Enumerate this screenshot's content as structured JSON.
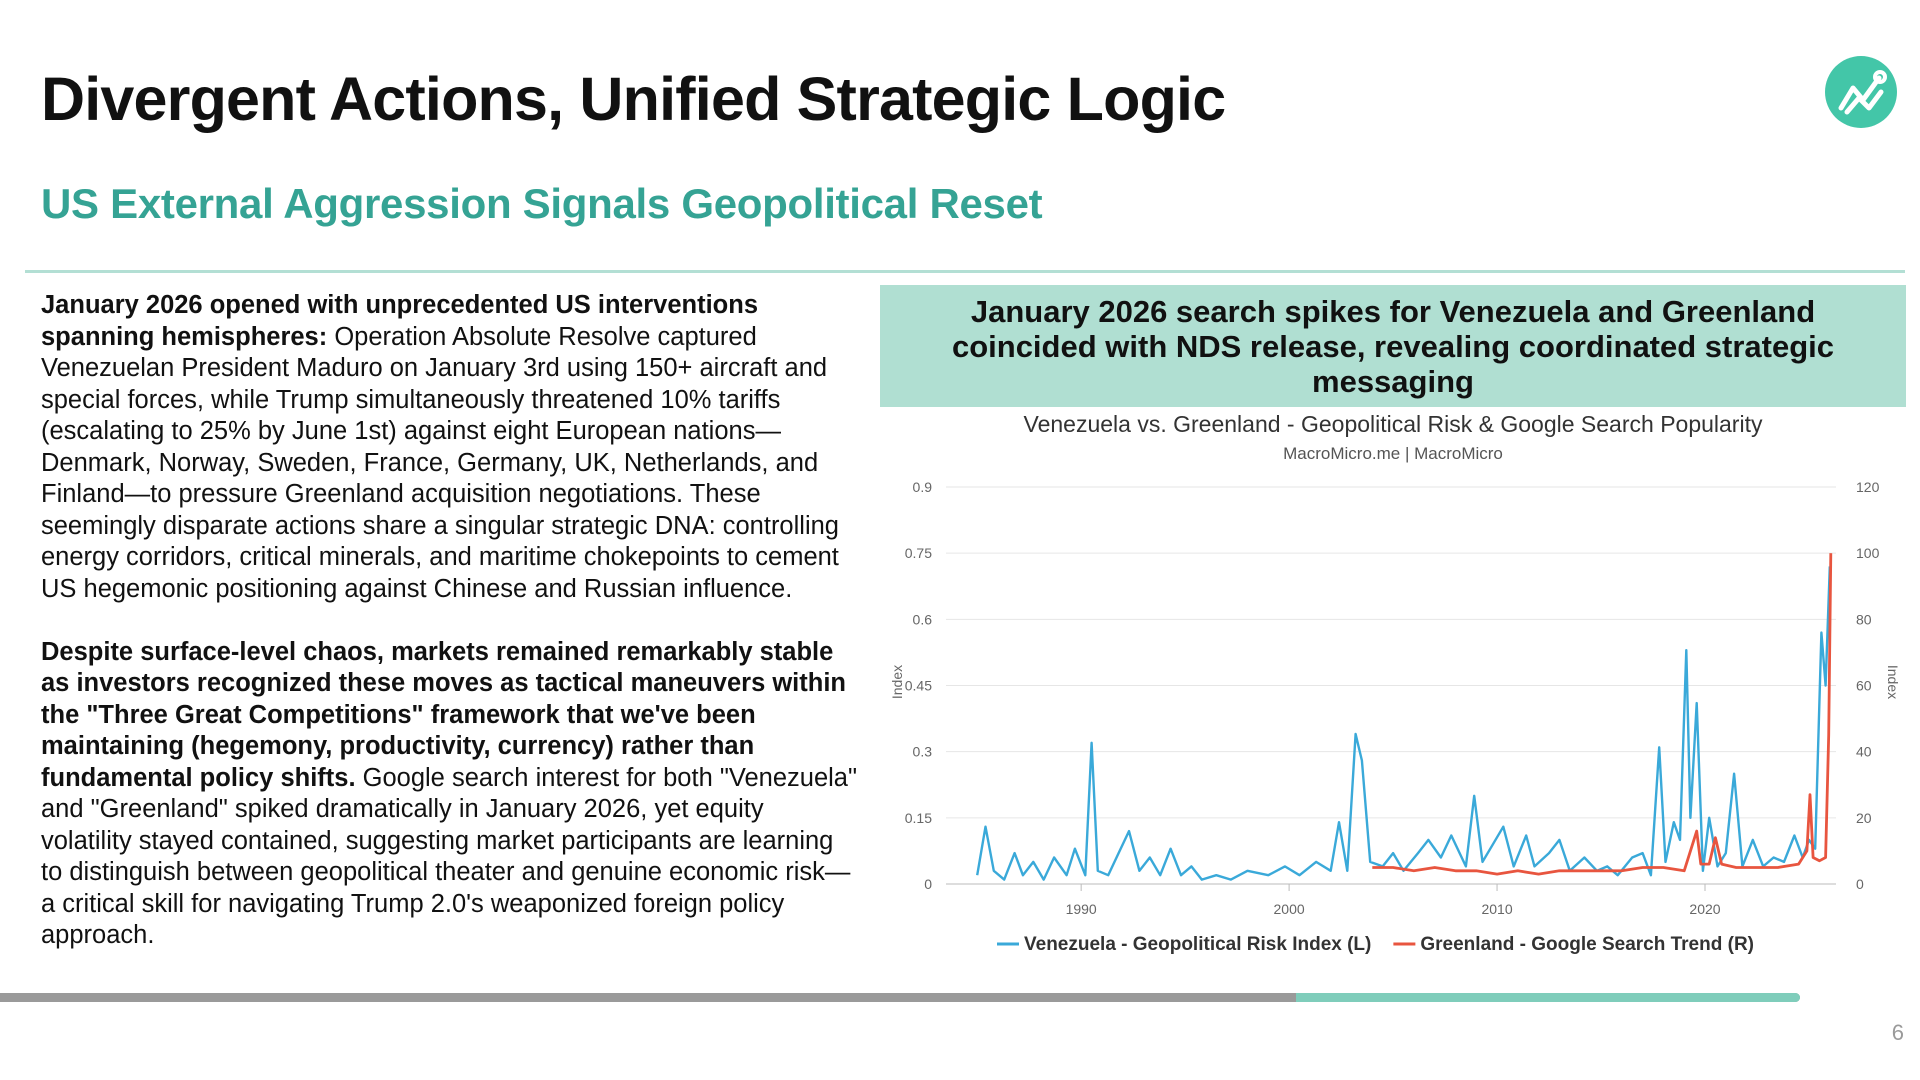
{
  "slide": {
    "title": "Divergent Actions, Unified Strategic Logic",
    "subtitle": "US External Aggression Signals Geopolitical Reset",
    "page_number": "6",
    "progress": 0.72,
    "accent_color": "#35a394",
    "logo_icon": "trend-chart-icon"
  },
  "body": {
    "p1_bold": "January 2026 opened with unprecedented US interventions spanning hemispheres:",
    "p1_text": " Operation Absolute Resolve captured Venezuelan President Maduro on January 3rd using 150+ aircraft and special forces, while Trump simultaneously threatened 10% tariffs (escalating to 25% by June 1st) against eight European nations—Denmark, Norway, Sweden, France, Germany, UK, Netherlands, and Finland—to pressure Greenland acquisition negotiations. These seemingly disparate actions share a singular strategic DNA: controlling energy corridors, critical minerals, and maritime chokepoints to cement US hegemonic positioning against Chinese and Russian influence.",
    "p2_bold": "Despite surface-level chaos, markets remained remarkably stable as investors recognized these moves as tactical maneuvers within the \"Three Great Competitions\" framework that we've been maintaining (hegemony, productivity, currency) rather than fundamental policy shifts.",
    "p2_text": " Google search interest for both \"Venezuela\" and \"Greenland\" spiked dramatically in January 2026, yet equity volatility stayed contained, suggesting market participants are learning to distinguish between geopolitical theater and genuine economic risk—a critical skill for navigating Trump 2.0's weaponized foreign policy approach."
  },
  "panel": {
    "heading": "January 2026 search spikes for Venezuela and Greenland coincided with NDS release, revealing coordinated strategic messaging"
  },
  "chart_data": {
    "type": "line",
    "title": "Venezuela vs. Greenland - Geopolitical Risk & Google Search Popularity",
    "subtitle": "MacroMicro.me | MacroMicro",
    "ylabel_left": "Index",
    "ylabel_right": "Index",
    "left_axis": {
      "ticks": [
        "0",
        "0.15",
        "0.3",
        "0.45",
        "0.6",
        "0.75",
        "0.9"
      ],
      "range": [
        0,
        0.9
      ]
    },
    "right_axis": {
      "ticks": [
        "0",
        "20",
        "40",
        "60",
        "80",
        "100",
        "120"
      ],
      "range": [
        0,
        120
      ]
    },
    "x_axis": {
      "ticks": [
        "1990",
        "2000",
        "2010",
        "2020"
      ],
      "range": [
        1983.5,
        2026.3
      ]
    },
    "grid": true,
    "legend_position": "bottom",
    "series": [
      {
        "name": "Venezuela - Geopolitical Risk Index (L)",
        "axis": "left",
        "color": "#3aa9d9",
        "points": [
          [
            1985,
            0.02
          ],
          [
            1985.4,
            0.13
          ],
          [
            1985.8,
            0.03
          ],
          [
            1986.3,
            0.01
          ],
          [
            1986.8,
            0.07
          ],
          [
            1987.2,
            0.02
          ],
          [
            1987.7,
            0.05
          ],
          [
            1988.2,
            0.01
          ],
          [
            1988.7,
            0.06
          ],
          [
            1989.3,
            0.02
          ],
          [
            1989.7,
            0.08
          ],
          [
            1990.2,
            0.02
          ],
          [
            1990.5,
            0.32
          ],
          [
            1990.8,
            0.03
          ],
          [
            1991.3,
            0.02
          ],
          [
            1991.8,
            0.07
          ],
          [
            1992.3,
            0.12
          ],
          [
            1992.8,
            0.03
          ],
          [
            1993.3,
            0.06
          ],
          [
            1993.8,
            0.02
          ],
          [
            1994.3,
            0.08
          ],
          [
            1994.8,
            0.02
          ],
          [
            1995.3,
            0.04
          ],
          [
            1995.8,
            0.01
          ],
          [
            1996.5,
            0.02
          ],
          [
            1997.2,
            0.01
          ],
          [
            1998,
            0.03
          ],
          [
            1999,
            0.02
          ],
          [
            1999.8,
            0.04
          ],
          [
            2000.5,
            0.02
          ],
          [
            2001.3,
            0.05
          ],
          [
            2002,
            0.03
          ],
          [
            2002.4,
            0.14
          ],
          [
            2002.8,
            0.03
          ],
          [
            2003.2,
            0.34
          ],
          [
            2003.5,
            0.28
          ],
          [
            2003.9,
            0.05
          ],
          [
            2004.5,
            0.04
          ],
          [
            2005,
            0.07
          ],
          [
            2005.5,
            0.03
          ],
          [
            2006.2,
            0.07
          ],
          [
            2006.7,
            0.1
          ],
          [
            2007.3,
            0.06
          ],
          [
            2007.8,
            0.11
          ],
          [
            2008.5,
            0.04
          ],
          [
            2008.9,
            0.2
          ],
          [
            2009.3,
            0.05
          ],
          [
            2009.8,
            0.09
          ],
          [
            2010.3,
            0.13
          ],
          [
            2010.8,
            0.04
          ],
          [
            2011.4,
            0.11
          ],
          [
            2011.8,
            0.04
          ],
          [
            2012.5,
            0.07
          ],
          [
            2013,
            0.1
          ],
          [
            2013.5,
            0.03
          ],
          [
            2014.2,
            0.06
          ],
          [
            2014.8,
            0.03
          ],
          [
            2015.3,
            0.04
          ],
          [
            2015.8,
            0.02
          ],
          [
            2016.5,
            0.06
          ],
          [
            2017,
            0.07
          ],
          [
            2017.4,
            0.02
          ],
          [
            2017.8,
            0.31
          ],
          [
            2018.1,
            0.05
          ],
          [
            2018.5,
            0.14
          ],
          [
            2018.8,
            0.1
          ],
          [
            2019.1,
            0.53
          ],
          [
            2019.3,
            0.15
          ],
          [
            2019.6,
            0.41
          ],
          [
            2019.9,
            0.03
          ],
          [
            2020.2,
            0.15
          ],
          [
            2020.6,
            0.04
          ],
          [
            2021,
            0.07
          ],
          [
            2021.4,
            0.25
          ],
          [
            2021.8,
            0.04
          ],
          [
            2022.3,
            0.1
          ],
          [
            2022.8,
            0.04
          ],
          [
            2023.3,
            0.06
          ],
          [
            2023.8,
            0.05
          ],
          [
            2024.3,
            0.11
          ],
          [
            2024.7,
            0.06
          ],
          [
            2025,
            0.1
          ],
          [
            2025.3,
            0.08
          ],
          [
            2025.6,
            0.57
          ],
          [
            2025.8,
            0.45
          ],
          [
            2026,
            0.72
          ]
        ]
      },
      {
        "name": "Greenland - Google Search Trend (R)",
        "axis": "right",
        "color": "#e8553f",
        "points": [
          [
            2004,
            5
          ],
          [
            2005,
            5
          ],
          [
            2006,
            4
          ],
          [
            2007,
            5
          ],
          [
            2008,
            4
          ],
          [
            2009,
            4
          ],
          [
            2010,
            3
          ],
          [
            2011,
            4
          ],
          [
            2012,
            3
          ],
          [
            2013,
            4
          ],
          [
            2014,
            4
          ],
          [
            2015,
            4
          ],
          [
            2016,
            4
          ],
          [
            2017,
            5
          ],
          [
            2018,
            5
          ],
          [
            2019,
            4
          ],
          [
            2019.6,
            16
          ],
          [
            2019.8,
            6
          ],
          [
            2020.2,
            6
          ],
          [
            2020.5,
            14
          ],
          [
            2020.8,
            6
          ],
          [
            2021.5,
            5
          ],
          [
            2022.5,
            5
          ],
          [
            2023.5,
            5
          ],
          [
            2024.5,
            6
          ],
          [
            2024.9,
            10
          ],
          [
            2025.05,
            27
          ],
          [
            2025.2,
            8
          ],
          [
            2025.5,
            7
          ],
          [
            2025.8,
            8
          ],
          [
            2025.95,
            45
          ],
          [
            2026.05,
            100
          ]
        ]
      }
    ]
  }
}
